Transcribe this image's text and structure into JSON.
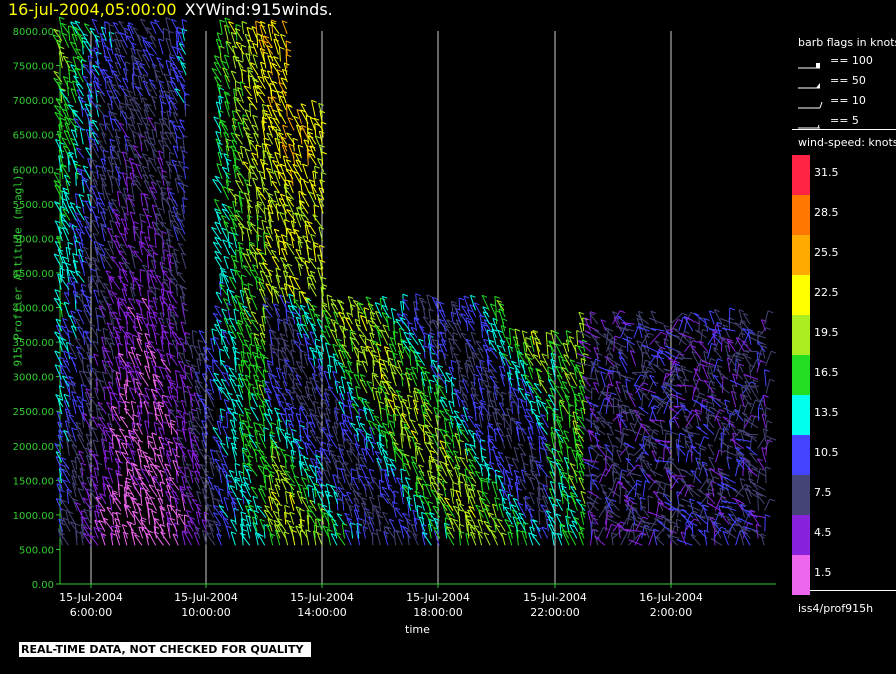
{
  "header": {
    "timestamp": "16-jul-2004,05:00:00",
    "product": "XYWind:915winds."
  },
  "chart_data": {
    "type": "scatter",
    "subtype": "wind-barb time-height",
    "ylabel": "915 Profiler Altitude (m agl)",
    "xlabel": "time",
    "ylim": [
      0,
      8000
    ],
    "yticks": [
      "8000.00",
      "7500.00",
      "7000.00",
      "6500.00",
      "6000.00",
      "5500.00",
      "5000.00",
      "4500.00",
      "4000.00",
      "3500.00",
      "3000.00",
      "2500.00",
      "2000.00",
      "1500.00",
      "1000.00",
      "500.00",
      "0.00"
    ],
    "xticks": [
      {
        "date": "15-Jul-2004",
        "time": "6:00:00"
      },
      {
        "date": "15-Jul-2004",
        "time": "10:00:00"
      },
      {
        "date": "15-Jul-2004",
        "time": "14:00:00"
      },
      {
        "date": "15-Jul-2004",
        "time": "18:00:00"
      },
      {
        "date": "15-Jul-2004",
        "time": "22:00:00"
      },
      {
        "date": "16-Jul-2004",
        "time": "2:00:00"
      }
    ],
    "x_start_hour": 5,
    "x_end_hour": 29.25,
    "colors": {
      "axis": "#33cc33",
      "grid": "#cccccc"
    }
  },
  "legend": {
    "barb_title": "barb flags in knots",
    "flags": [
      "== 100",
      "== 50",
      "== 10",
      "== 5"
    ],
    "speed_title": "wind-speed: knots",
    "speed_bins": [
      {
        "label": "31.5",
        "color": "#ff2244"
      },
      {
        "label": "28.5",
        "color": "#ff7700"
      },
      {
        "label": "25.5",
        "color": "#ffaa00"
      },
      {
        "label": "22.5",
        "color": "#ffff00"
      },
      {
        "label": "19.5",
        "color": "#aaee22"
      },
      {
        "label": "16.5",
        "color": "#22dd22"
      },
      {
        "label": "13.5",
        "color": "#00ffee"
      },
      {
        "label": "10.5",
        "color": "#4444ff"
      },
      {
        "label": "7.5",
        "color": "#444477"
      },
      {
        "label": "4.5",
        "color": "#8822dd"
      },
      {
        "label": "1.5",
        "color": "#ee66ee"
      }
    ],
    "source": "iss4/prof915h"
  },
  "footer": {
    "xlabel": "time",
    "quality_note": "REAL-TIME DATA, NOT CHECKED FOR QUALITY"
  }
}
